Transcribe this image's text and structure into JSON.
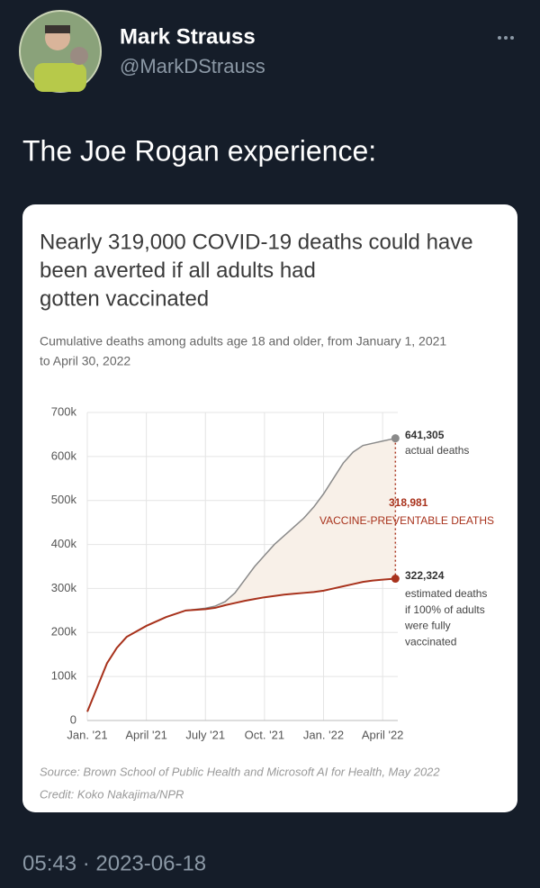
{
  "tweet": {
    "name": "Mark Strauss",
    "handle": "@MarkDStrauss",
    "text": "The Joe Rogan experience:",
    "timestamp": "05:43 · 2023-06-18"
  },
  "chart_data": {
    "type": "line",
    "title": [
      "Nearly 319,000 COVID-19 deaths could have",
      "been averted if all adults had",
      "gotten vaccinated"
    ],
    "subtitle": [
      "Cumulative deaths among adults age 18 and older, from January 1, 2021",
      "to April 30, 2022"
    ],
    "source": "Source: Brown School of Public Health and Microsoft AI for Health, May 2022",
    "credit": "Credit: Koko Nakajima/NPR",
    "x": [
      0,
      0.5,
      1,
      1.5,
      2,
      3,
      4,
      5,
      6,
      6.5,
      7,
      7.5,
      8,
      8.5,
      9,
      9.5,
      10,
      10.5,
      11,
      11.5,
      12,
      12.5,
      13,
      13.5,
      14,
      14.5,
      15,
      15.65
    ],
    "series": [
      {
        "name": "actual deaths",
        "color": "#8a8a8a",
        "values": [
          20000,
          75000,
          130000,
          165000,
          190000,
          215000,
          235000,
          250000,
          255000,
          260000,
          270000,
          290000,
          320000,
          350000,
          375000,
          400000,
          420000,
          440000,
          460000,
          485000,
          515000,
          550000,
          585000,
          610000,
          625000,
          630000,
          635000,
          641305
        ]
      },
      {
        "name": "estimated deaths",
        "color": "#a8321c",
        "values": [
          20000,
          75000,
          130000,
          165000,
          190000,
          215000,
          235000,
          250000,
          253000,
          256000,
          262000,
          267000,
          272000,
          276000,
          280000,
          283000,
          286000,
          288000,
          290000,
          292000,
          295000,
          300000,
          305000,
          310000,
          315000,
          318000,
          320000,
          322324
        ]
      }
    ],
    "annotations": {
      "actual": [
        "641,305",
        "actual deaths"
      ],
      "gap": [
        "318,981",
        "VACCINE-PREVENTABLE DEATHS"
      ],
      "estimated": [
        "322,324",
        "estimated deaths",
        "if 100% of adults",
        "were fully",
        "vaccinated"
      ]
    },
    "xlim": [
      0,
      16
    ],
    "xticks": [
      {
        "value": 0,
        "label": "Jan. '21"
      },
      {
        "value": 3,
        "label": "April '21"
      },
      {
        "value": 6,
        "label": "July '21"
      },
      {
        "value": 9,
        "label": "Oct. '21"
      },
      {
        "value": 12,
        "label": "Jan. '22"
      },
      {
        "value": 15,
        "label": "April '22"
      }
    ],
    "ylim": [
      0,
      700000
    ],
    "yticks": [
      0,
      {
        "value": 100000,
        "label": "100k"
      },
      {
        "value": 200000,
        "label": "200k"
      },
      {
        "value": 300000,
        "label": "300k"
      },
      {
        "value": 400000,
        "label": "400k"
      },
      {
        "value": 500000,
        "label": "500k"
      },
      {
        "value": 600000,
        "label": "600k"
      },
      {
        "value": 700000,
        "label": "700k"
      }
    ],
    "grid": true
  }
}
